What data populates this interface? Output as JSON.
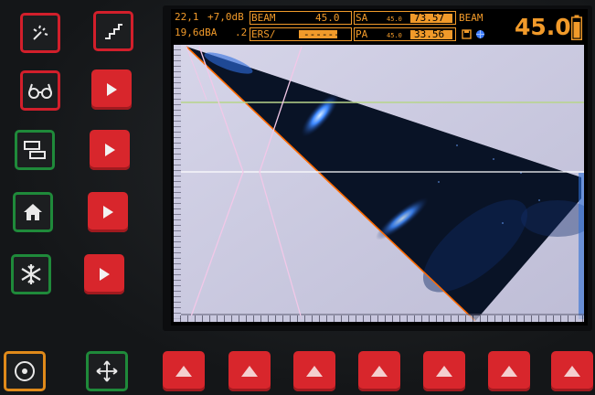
{
  "header": {
    "gain_db": "22,1",
    "gain_offset": "+7,0dB",
    "gain_dba": "19,6dBA",
    "gain_step": ".2",
    "beam_label": "BEAM",
    "beam_value": "45.0",
    "ers_label": "ERS/",
    "ers_value": "------",
    "sa_label": "SA",
    "sa_angle": "45.0",
    "sa_value": "73.57",
    "pa_label": "PA",
    "pa_angle": "45.0",
    "pa_value": "33.56",
    "beam_right_label": "BEAM",
    "beam_big_value": "45.0"
  },
  "colors": {
    "accent": "#f19a2a",
    "key_red": "#d8262c",
    "key_green": "#1f8a3a",
    "key_orange": "#e08a1a",
    "beam_edge": "#ff6a00",
    "gate_line": "#b7d58a"
  },
  "left_keys": [
    {
      "icon": "spark-icon",
      "style": "outline-red"
    },
    {
      "icon": "stairs-icon",
      "style": "outline-red"
    },
    {
      "icon": "glasses-icon",
      "style": "outline-red"
    },
    {
      "icon": "play-icon",
      "style": "solid-red"
    },
    {
      "icon": "layout-icon",
      "style": "outline-green"
    },
    {
      "icon": "play-icon",
      "style": "solid-red"
    },
    {
      "icon": "home-icon",
      "style": "outline-green"
    },
    {
      "icon": "play-icon",
      "style": "solid-red"
    },
    {
      "icon": "snowflake-icon",
      "style": "outline-green"
    },
    {
      "icon": "play-icon",
      "style": "solid-red"
    }
  ],
  "bottom_keys": [
    {
      "icon": "target-icon",
      "style": "outline-orange"
    },
    {
      "icon": "move-icon",
      "style": "outline-green"
    },
    {
      "icon": "up-triangle-icon",
      "count": 7
    }
  ]
}
